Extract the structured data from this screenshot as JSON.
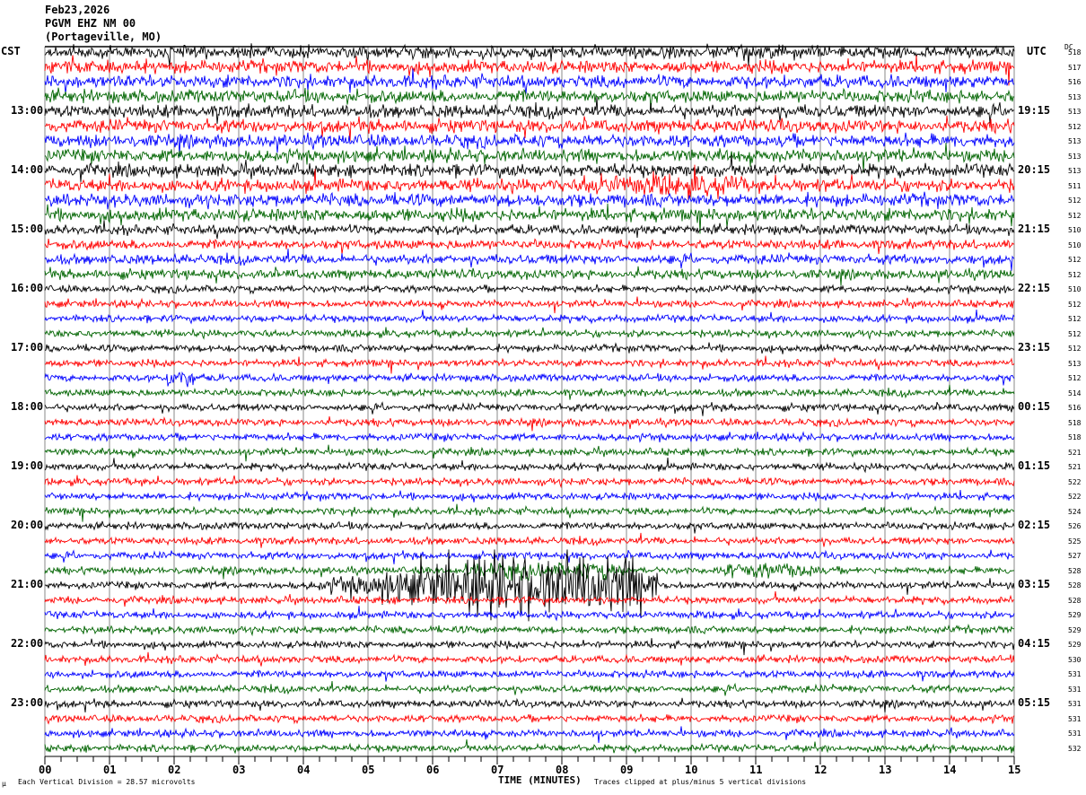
{
  "header": {
    "date": "Feb23,2026",
    "station": "PGVM EHZ NM 00",
    "location": "(Portageville, MO)"
  },
  "left_zone_label": "CST",
  "right_zone_label": "UTC",
  "dc_label": "DC",
  "footer": {
    "scale_icon": "µ",
    "scale_text": "Each Vertical Division =   28.57 microvolts",
    "xlabel": "TIME (MINUTES)",
    "clip_text": "Traces clipped at plus/minus 5 vertical divisions"
  },
  "chart_data": {
    "type": "line",
    "subtype": "helicorder",
    "xlabel": "TIME (MINUTES)",
    "xlim": [
      0,
      15
    ],
    "x_ticks": [
      "00",
      "01",
      "02",
      "03",
      "04",
      "05",
      "06",
      "07",
      "08",
      "09",
      "10",
      "11",
      "12",
      "13",
      "14",
      "15"
    ],
    "grid": true,
    "trace_colors": [
      "#000000",
      "#ff0000",
      "#0000ff",
      "#006400"
    ],
    "left_hour_labels": [
      "13:00",
      "14:00",
      "15:00",
      "16:00",
      "17:00",
      "18:00",
      "19:00",
      "20:00",
      "21:00",
      "22:00",
      "23:00"
    ],
    "right_hour_labels": [
      "19:15",
      "20:15",
      "21:15",
      "22:15",
      "23:15",
      "00:15",
      "01:15",
      "02:15",
      "03:15",
      "04:15",
      "05:15"
    ],
    "dc_offsets": [
      518,
      517,
      516,
      513,
      513,
      512,
      513,
      513,
      513,
      511,
      512,
      512,
      510,
      510,
      512,
      512,
      510,
      512,
      512,
      512,
      512,
      513,
      512,
      514,
      516,
      518,
      518,
      521,
      521,
      522,
      522,
      524,
      526,
      525,
      527,
      528,
      528,
      528,
      529,
      529,
      529,
      530,
      531,
      531,
      531,
      531,
      531,
      532
    ],
    "events": [
      {
        "trace_start_cst": "21:00",
        "minutes": [
          4,
          9.5
        ],
        "peak_minutes": [
          7,
          8.6
        ]
      }
    ]
  }
}
